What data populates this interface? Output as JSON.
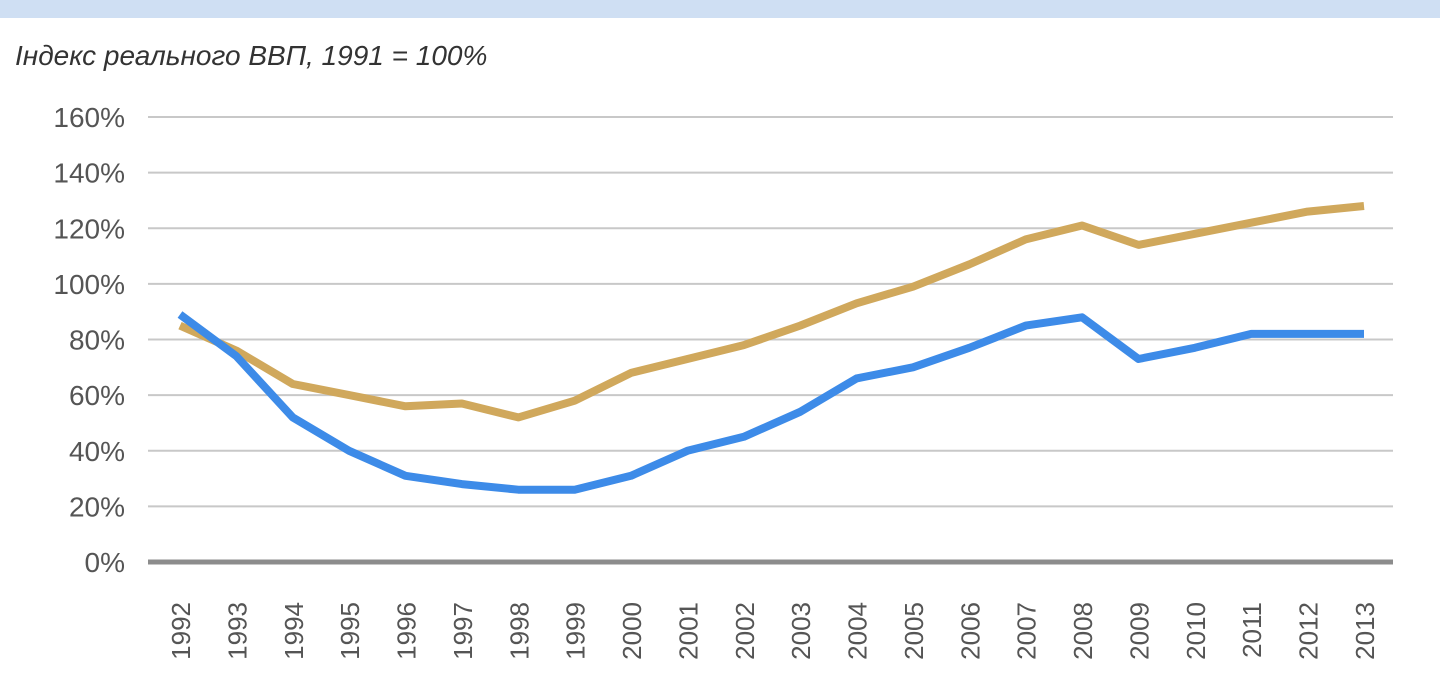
{
  "chart_data": {
    "type": "line",
    "subtitle": "Індекс реального ВВП, 1991 = 100%",
    "categories": [
      "1992",
      "1993",
      "1994",
      "1995",
      "1996",
      "1997",
      "1998",
      "1999",
      "2000",
      "2001",
      "2002",
      "2003",
      "2004",
      "2005",
      "2006",
      "2007",
      "2008",
      "2009",
      "2010",
      "2011",
      "2012",
      "2013"
    ],
    "y_ticks": [
      "0%",
      "20%",
      "40%",
      "60%",
      "80%",
      "100%",
      "120%",
      "140%",
      "160%"
    ],
    "ylim": [
      0,
      160
    ],
    "grid": true,
    "series": [
      {
        "color": "#d0a85c",
        "values": [
          85,
          76,
          64,
          60,
          56,
          57,
          52,
          58,
          68,
          73,
          78,
          85,
          93,
          99,
          107,
          116,
          121,
          114,
          118,
          122,
          126,
          128
        ]
      },
      {
        "color": "#3d8be8",
        "values": [
          89,
          74,
          52,
          40,
          31,
          28,
          26,
          26,
          31,
          40,
          45,
          54,
          66,
          70,
          77,
          85,
          88,
          73,
          77,
          82,
          82,
          82
        ]
      }
    ]
  }
}
